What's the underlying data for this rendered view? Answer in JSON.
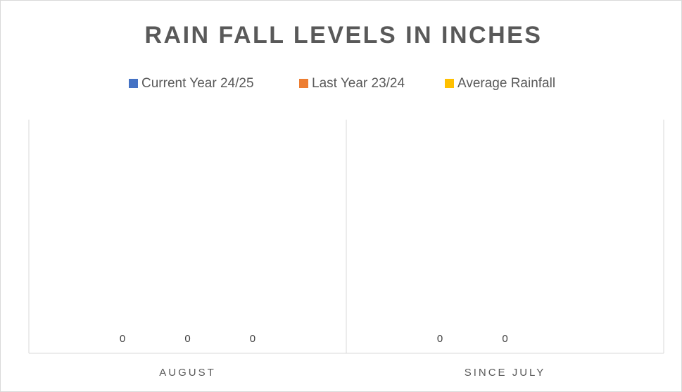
{
  "chart_data": {
    "type": "bar",
    "title": "RAIN FALL LEVELS IN INCHES",
    "categories": [
      "AUGUST",
      "SINCE JULY"
    ],
    "series": [
      {
        "name": "Current Year 24/25",
        "color": "#4472c4",
        "values": [
          0,
          0
        ]
      },
      {
        "name": "Last Year 23/24",
        "color": "#ed7d31",
        "values": [
          0,
          0
        ]
      },
      {
        "name": "Average Rainfall",
        "color": "#ffc000",
        "values": [
          0,
          null
        ]
      }
    ],
    "legend": "top",
    "grid": true
  }
}
